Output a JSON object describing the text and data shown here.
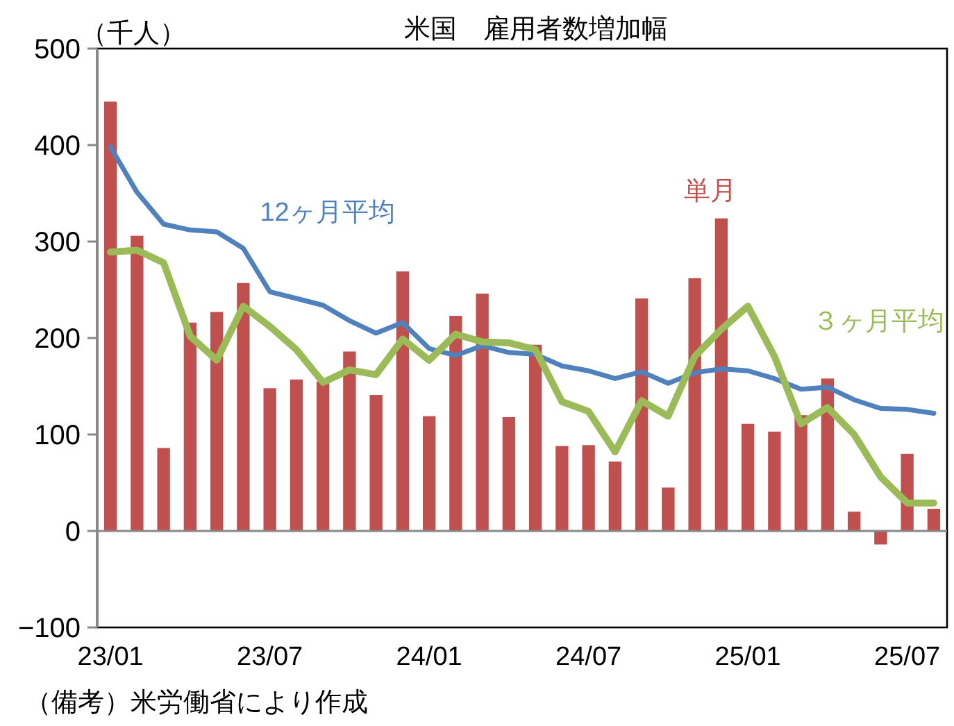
{
  "chart_data": {
    "type": "bar",
    "title": "米国　雇用者数増加幅",
    "ylabel": "（千人）",
    "annotations": [
      "（備考）米労働省により作成"
    ],
    "categories": [
      "23/01",
      null,
      null,
      null,
      null,
      null,
      "23/07",
      null,
      null,
      null,
      null,
      null,
      "24/01",
      null,
      null,
      null,
      null,
      null,
      "24/07",
      null,
      null,
      null,
      null,
      null,
      "25/01",
      null,
      null,
      null,
      null,
      null,
      "25/07",
      null
    ],
    "series": [
      {
        "name": "単月",
        "color": "#c0504d",
        "values": [
          445,
          306,
          86,
          216,
          227,
          257,
          148,
          157,
          155,
          186,
          141,
          269,
          119,
          223,
          246,
          118,
          193,
          88,
          89,
          72,
          241,
          45,
          262,
          324,
          111,
          103,
          120,
          158,
          20,
          -14,
          80,
          23
        ]
      },
      {
        "name": "12ヶ月平均",
        "type": "line",
        "color": "#4f81bd",
        "values": [
          398,
          351,
          318,
          312,
          310,
          293,
          248,
          241,
          234,
          218,
          205,
          216,
          189,
          182,
          192,
          185,
          183,
          171,
          166,
          158,
          165,
          153,
          164,
          168,
          166,
          158,
          147,
          149,
          136,
          127,
          126,
          122
        ]
      },
      {
        "name": "３ヶ月平均",
        "type": "line",
        "color": "#9bbb59",
        "values": [
          289,
          291,
          278,
          202,
          177,
          233,
          212,
          188,
          154,
          167,
          162,
          199,
          177,
          204,
          196,
          195,
          188,
          134,
          124,
          82,
          135,
          119,
          181,
          209,
          233,
          181,
          111,
          128,
          100,
          56,
          29,
          29
        ]
      }
    ],
    "ylim": [
      -100,
      500
    ],
    "yticks": [
      -100,
      0,
      100,
      200,
      300,
      400,
      500
    ]
  }
}
